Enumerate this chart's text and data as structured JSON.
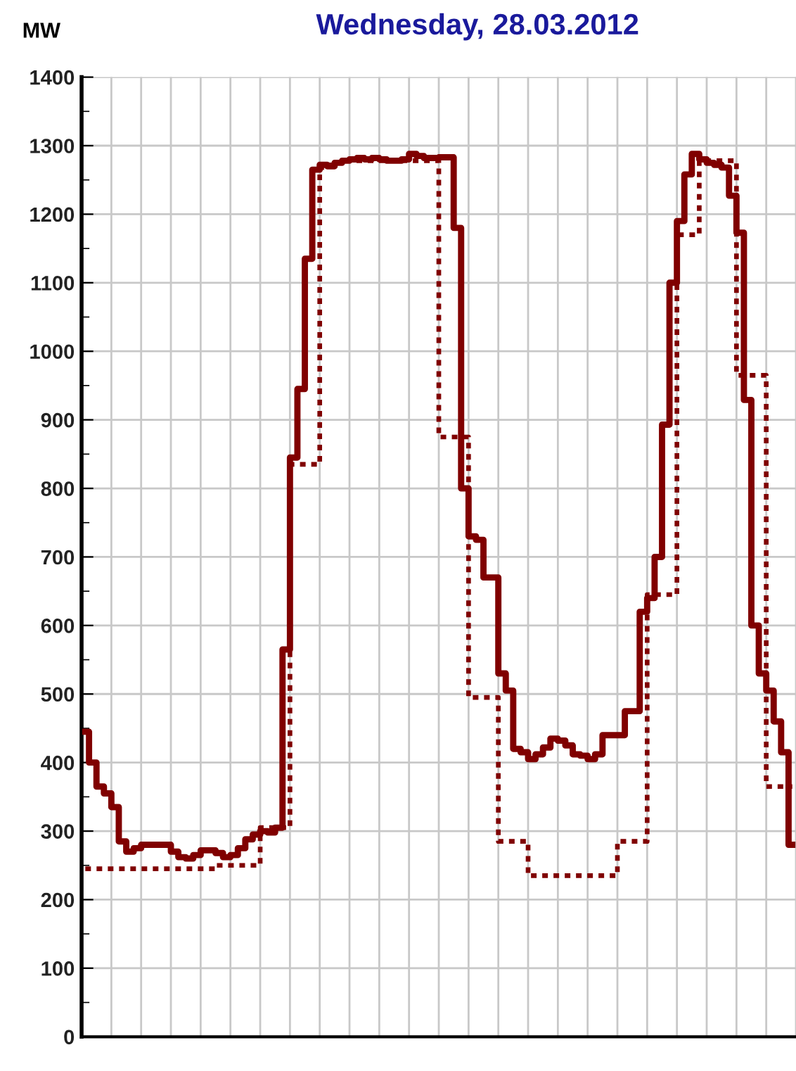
{
  "chart_data": {
    "type": "step",
    "title": "Wednesday, 28.03.2012",
    "ylabel": "MW",
    "categories": [
      null,
      null,
      null,
      null,
      null,
      null,
      null,
      null,
      null,
      null,
      null,
      null,
      null,
      null,
      null,
      null,
      null,
      null,
      null,
      null,
      null,
      null,
      null,
      null,
      null,
      null,
      null,
      null,
      null,
      null,
      null,
      null,
      null,
      null,
      null,
      null,
      null,
      null,
      null,
      null,
      null,
      null,
      null,
      null,
      null,
      null,
      null,
      null,
      null,
      null,
      null,
      null,
      null,
      null,
      null,
      null,
      null,
      null,
      null,
      null,
      null,
      null,
      null,
      null,
      null,
      null,
      null,
      null,
      null,
      null,
      null,
      null,
      null,
      null,
      null,
      null,
      null,
      null,
      null,
      null,
      null,
      null,
      null,
      null,
      null,
      null,
      null,
      null,
      null,
      null,
      null,
      null,
      null,
      null,
      null,
      null
    ],
    "series": [
      {
        "color": "#800000",
        "line_style": "solid",
        "values": [
          445,
          400,
          365,
          355,
          335,
          285,
          270,
          275,
          280,
          280,
          280,
          280,
          270,
          262,
          260,
          265,
          272,
          272,
          268,
          262,
          265,
          275,
          288,
          295,
          300,
          298,
          305,
          565,
          845,
          945,
          1135,
          1265,
          1272,
          1270,
          1275,
          1278,
          1280,
          1282,
          1280,
          1282,
          1280,
          1278,
          1278,
          1280,
          1288,
          1285,
          1282,
          1282,
          1283,
          1283,
          1180,
          800,
          730,
          725,
          670,
          670,
          530,
          505,
          420,
          415,
          405,
          412,
          422,
          435,
          432,
          425,
          412,
          410,
          405,
          412,
          440,
          440,
          440,
          475,
          475,
          620,
          640,
          700,
          893,
          1100,
          1190,
          1258,
          1288,
          1280,
          1275,
          1272,
          1268,
          1227,
          1173,
          929,
          600,
          530,
          505,
          460,
          415,
          280
        ]
      },
      {
        "color": "#800000",
        "line_style": "dotted",
        "values": [
          245,
          245,
          245,
          245,
          245,
          245,
          245,
          245,
          245,
          245,
          245,
          245,
          245,
          245,
          245,
          245,
          245,
          245,
          250,
          250,
          250,
          250,
          250,
          250,
          305,
          305,
          305,
          305,
          835,
          835,
          835,
          835,
          1268,
          1272,
          1275,
          1278,
          1278,
          1278,
          1278,
          1278,
          1278,
          1278,
          1278,
          1278,
          1278,
          1278,
          1278,
          1278,
          875,
          875,
          875,
          875,
          495,
          495,
          495,
          495,
          285,
          285,
          285,
          285,
          235,
          235,
          235,
          235,
          235,
          235,
          235,
          235,
          235,
          235,
          235,
          235,
          285,
          285,
          285,
          285,
          645,
          645,
          645,
          645,
          1170,
          1170,
          1170,
          1278,
          1278,
          1278,
          1278,
          1278,
          965,
          965,
          965,
          965,
          365,
          365,
          365,
          365
        ]
      }
    ],
    "ylim": [
      0,
      1400
    ],
    "yticks": [
      0,
      {
        "value": 50,
        "label": null
      },
      100,
      {
        "value": 150,
        "label": null
      },
      200,
      {
        "value": 250,
        "label": null
      },
      300,
      {
        "value": 350,
        "label": null
      },
      400,
      {
        "value": 450,
        "label": null
      },
      500,
      {
        "value": 550,
        "label": null
      },
      600,
      {
        "value": 650,
        "label": null
      },
      700,
      {
        "value": 750,
        "label": null
      },
      800,
      {
        "value": 850,
        "label": null
      },
      900,
      {
        "value": 950,
        "label": null
      },
      1000,
      {
        "value": 1050,
        "label": null
      },
      1100,
      {
        "value": 1150,
        "label": null
      },
      1200,
      {
        "value": 1250,
        "label": null
      },
      1300,
      {
        "value": 1350,
        "label": null
      },
      1400
    ],
    "grid": true
  }
}
